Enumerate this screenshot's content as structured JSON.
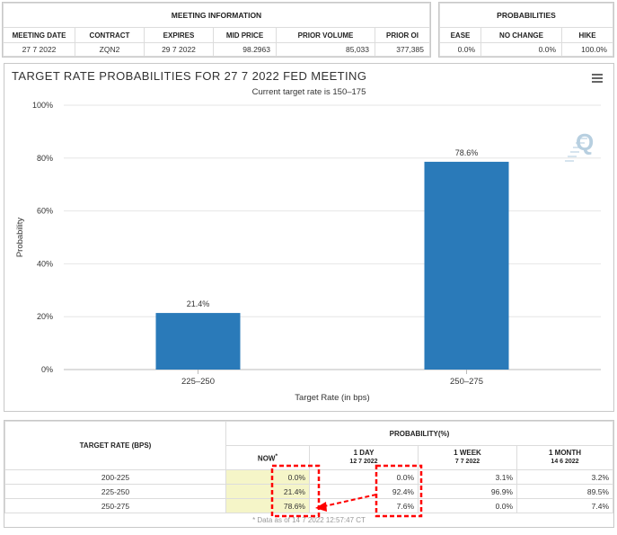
{
  "meeting_info": {
    "title": "MEETING INFORMATION",
    "headers": [
      "MEETING DATE",
      "CONTRACT",
      "EXPIRES",
      "MID PRICE",
      "PRIOR VOLUME",
      "PRIOR OI"
    ],
    "row": [
      "27 7 2022",
      "ZQN2",
      "29 7 2022",
      "98.2963",
      "85,033",
      "377,385"
    ]
  },
  "probabilities": {
    "title": "PROBABILITIES",
    "headers": [
      "EASE",
      "NO CHANGE",
      "HIKE"
    ],
    "row": [
      "0.0%",
      "0.0%",
      "100.0%"
    ]
  },
  "chart": {
    "menu_icon": "hamburger-menu-icon",
    "watermark": "Q",
    "bar_color": "#2a7ab9"
  },
  "chart_data": {
    "type": "bar",
    "title": "TARGET RATE PROBABILITIES FOR 27 7 2022 FED MEETING",
    "subtitle": "Current target rate is 150–175",
    "xlabel": "Target Rate (in bps)",
    "ylabel": "Probability",
    "categories": [
      "225–250",
      "250–275"
    ],
    "values": [
      21.4,
      78.6
    ],
    "data_labels": [
      "21.4%",
      "78.6%"
    ],
    "ylim": [
      0,
      100
    ],
    "yticks": [
      "0%",
      "20%",
      "40%",
      "60%",
      "80%",
      "100%"
    ],
    "grid": true
  },
  "bottom_table": {
    "rate_header": "TARGET RATE (BPS)",
    "prob_header": "PROBABILITY(%)",
    "columns": [
      {
        "label": "NOW",
        "mark": "*",
        "date": ""
      },
      {
        "label": "1 DAY",
        "mark": "",
        "date": "12 7 2022"
      },
      {
        "label": "1 WEEK",
        "mark": "",
        "date": "7 7 2022"
      },
      {
        "label": "1 MONTH",
        "mark": "",
        "date": "14 6 2022"
      }
    ],
    "rows": [
      {
        "rate": "200-225",
        "values": [
          "0.0%",
          "0.0%",
          "3.1%",
          "3.2%"
        ]
      },
      {
        "rate": "225-250",
        "values": [
          "21.4%",
          "92.4%",
          "96.9%",
          "89.5%"
        ]
      },
      {
        "rate": "250-275",
        "values": [
          "78.6%",
          "7.6%",
          "0.0%",
          "7.4%"
        ]
      }
    ],
    "footnote": "* Data as of 14 7 2022 12:57:47 CT",
    "annotation_color": "#ff0000"
  }
}
